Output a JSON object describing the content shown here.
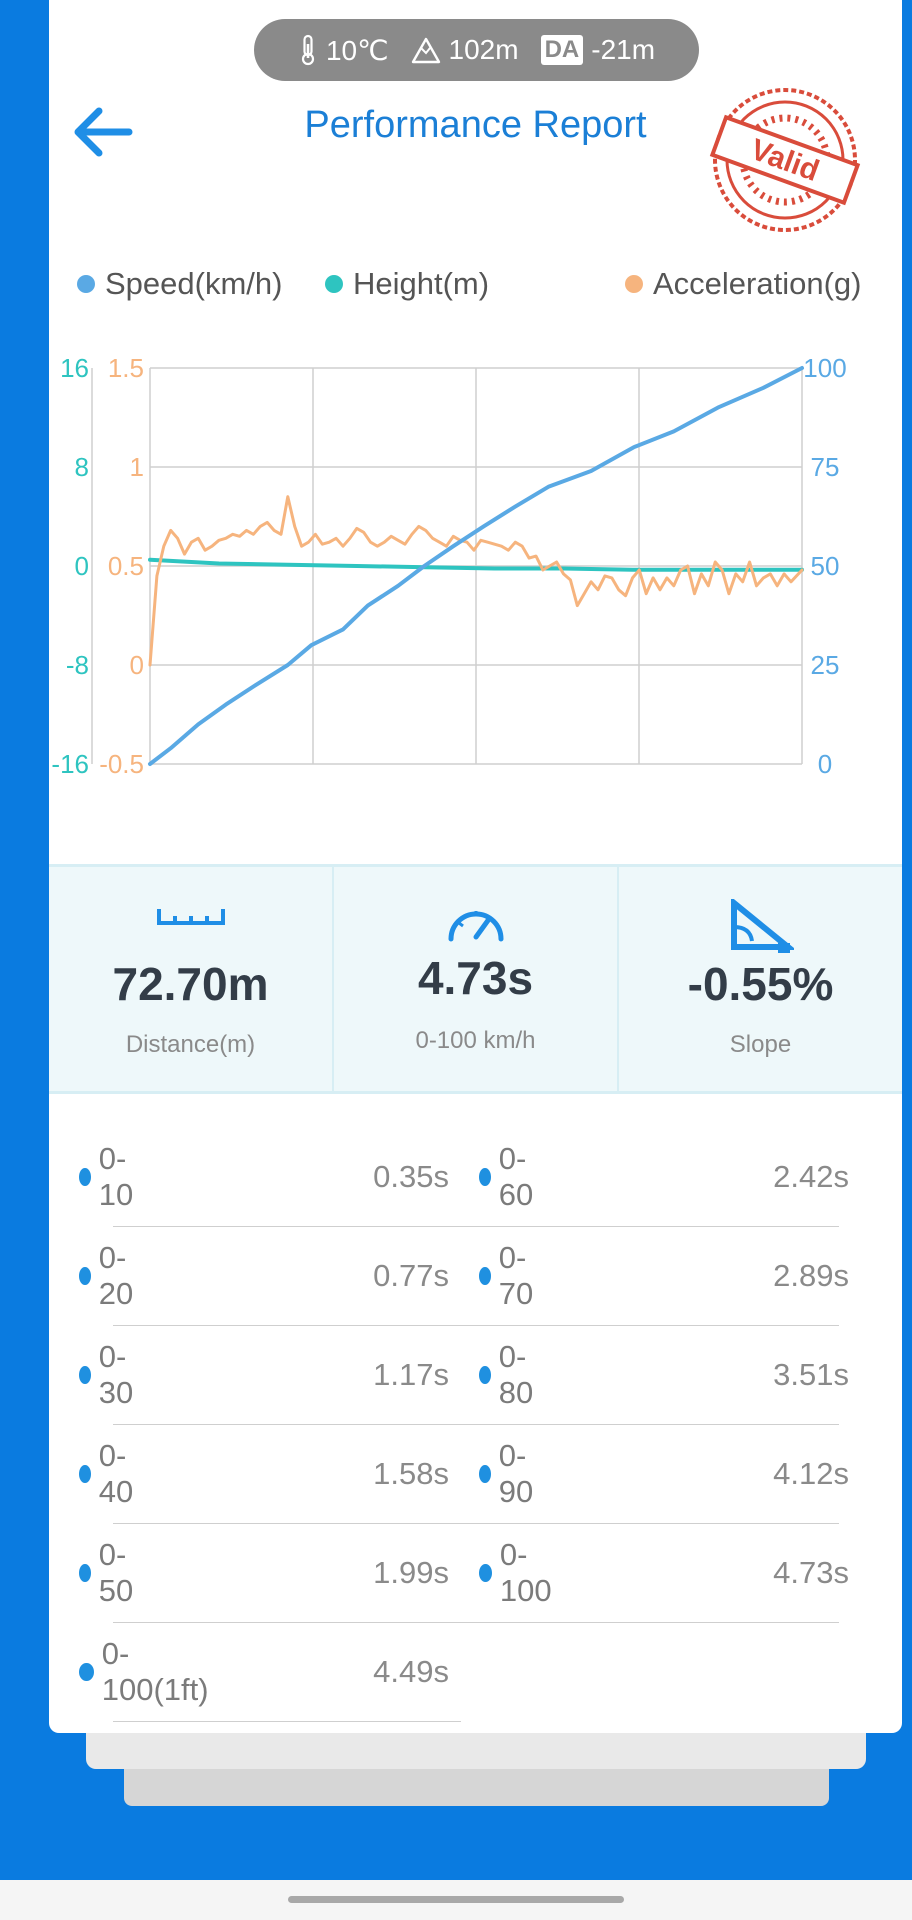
{
  "env": {
    "temperature": "10℃",
    "altitude": "102m",
    "da_badge": "DA",
    "density_altitude": "-21m"
  },
  "header": {
    "title": "Performance Report",
    "stamp_text": "Valid"
  },
  "colors": {
    "speed": "#5aa9e4",
    "height": "#2ec4c0",
    "acceleration": "#f6b47e",
    "accent": "#1b7fd6",
    "stamp": "#d94c3b"
  },
  "legend": [
    "Speed(km/h)",
    "Height(m)",
    "Acceleration(g)"
  ],
  "chart_data": {
    "type": "line",
    "x_range": [
      0,
      4.73
    ],
    "grid": true,
    "legend": "top",
    "axes": {
      "height_ticks": [
        "16",
        "8",
        "0",
        "-8",
        "-16"
      ],
      "acceleration_ticks": [
        "1.5",
        "1",
        "0.5",
        "0",
        "-0.5"
      ],
      "speed_ticks": [
        "100",
        "75",
        "50",
        "25",
        "0"
      ],
      "height_range": [
        -16,
        16
      ],
      "acceleration_range": [
        -0.5,
        1.5
      ],
      "speed_range": [
        0,
        100
      ]
    },
    "series": [
      {
        "name": "Speed(km/h)",
        "axis": "speed",
        "x": [
          0,
          0.15,
          0.35,
          0.55,
          0.77,
          1.0,
          1.17,
          1.4,
          1.58,
          1.8,
          1.99,
          2.2,
          2.42,
          2.65,
          2.89,
          3.2,
          3.51,
          3.8,
          4.12,
          4.45,
          4.73
        ],
        "y": [
          0,
          4,
          10,
          15,
          20,
          25,
          30,
          34,
          40,
          45,
          50,
          55,
          60,
          65,
          70,
          74,
          80,
          84,
          90,
          95,
          100
        ]
      },
      {
        "name": "Height(m)",
        "axis": "height",
        "x": [
          0,
          0.5,
          1.0,
          1.5,
          2.0,
          2.5,
          3.0,
          3.5,
          4.0,
          4.73
        ],
        "y": [
          0.5,
          0.2,
          0.1,
          0,
          -0.1,
          -0.2,
          -0.2,
          -0.3,
          -0.3,
          -0.3
        ]
      },
      {
        "name": "Acceleration(g)",
        "axis": "acceleration",
        "x": [
          0,
          0.05,
          0.1,
          0.15,
          0.2,
          0.25,
          0.3,
          0.35,
          0.4,
          0.45,
          0.5,
          0.55,
          0.6,
          0.65,
          0.7,
          0.75,
          0.8,
          0.85,
          0.9,
          0.95,
          1.0,
          1.05,
          1.1,
          1.15,
          1.2,
          1.25,
          1.3,
          1.35,
          1.4,
          1.45,
          1.5,
          1.55,
          1.6,
          1.65,
          1.7,
          1.75,
          1.8,
          1.85,
          1.9,
          1.95,
          2.0,
          2.05,
          2.1,
          2.15,
          2.2,
          2.25,
          2.3,
          2.35,
          2.4,
          2.45,
          2.5,
          2.55,
          2.6,
          2.65,
          2.7,
          2.75,
          2.8,
          2.85,
          2.9,
          2.95,
          3.0,
          3.05,
          3.1,
          3.15,
          3.2,
          3.25,
          3.3,
          3.35,
          3.4,
          3.45,
          3.5,
          3.55,
          3.6,
          3.65,
          3.7,
          3.75,
          3.8,
          3.85,
          3.9,
          3.95,
          4.0,
          4.05,
          4.1,
          4.15,
          4.2,
          4.25,
          4.3,
          4.35,
          4.4,
          4.45,
          4.5,
          4.55,
          4.6,
          4.65,
          4.73
        ],
        "y": [
          0,
          0.45,
          0.6,
          0.68,
          0.64,
          0.56,
          0.62,
          0.64,
          0.58,
          0.6,
          0.63,
          0.64,
          0.66,
          0.65,
          0.68,
          0.66,
          0.7,
          0.72,
          0.68,
          0.66,
          0.85,
          0.7,
          0.6,
          0.62,
          0.66,
          0.61,
          0.62,
          0.64,
          0.6,
          0.64,
          0.69,
          0.67,
          0.62,
          0.6,
          0.62,
          0.65,
          0.63,
          0.61,
          0.66,
          0.7,
          0.68,
          0.64,
          0.62,
          0.6,
          0.65,
          0.63,
          0.62,
          0.58,
          0.63,
          0.62,
          0.61,
          0.6,
          0.58,
          0.62,
          0.6,
          0.54,
          0.55,
          0.48,
          0.5,
          0.52,
          0.46,
          0.43,
          0.3,
          0.36,
          0.42,
          0.38,
          0.45,
          0.44,
          0.38,
          0.35,
          0.44,
          0.48,
          0.36,
          0.44,
          0.38,
          0.44,
          0.4,
          0.48,
          0.5,
          0.36,
          0.46,
          0.4,
          0.52,
          0.48,
          0.36,
          0.46,
          0.42,
          0.52,
          0.4,
          0.44,
          0.46,
          0.4,
          0.46,
          0.42,
          0.48
        ]
      }
    ]
  },
  "stats": [
    {
      "icon": "ruler-icon",
      "value": "72.70m",
      "label": "Distance(m)"
    },
    {
      "icon": "speedometer-icon",
      "value": "4.73s",
      "label": "0-100 km/h"
    },
    {
      "icon": "slope-icon",
      "value": "-0.55%",
      "label": "Slope"
    }
  ],
  "splits": [
    {
      "left_label": "0-10",
      "left_time": "0.35s",
      "right_label": "0-60",
      "right_time": "2.42s"
    },
    {
      "left_label": "0-20",
      "left_time": "0.77s",
      "right_label": "0-70",
      "right_time": "2.89s"
    },
    {
      "left_label": "0-30",
      "left_time": "1.17s",
      "right_label": "0-80",
      "right_time": "3.51s"
    },
    {
      "left_label": "0-40",
      "left_time": "1.58s",
      "right_label": "0-90",
      "right_time": "4.12s"
    },
    {
      "left_label": "0-50",
      "left_time": "1.99s",
      "right_label": "0-100",
      "right_time": "4.73s"
    },
    {
      "left_label": "0-100(1ft)",
      "left_time": "4.49s"
    }
  ]
}
